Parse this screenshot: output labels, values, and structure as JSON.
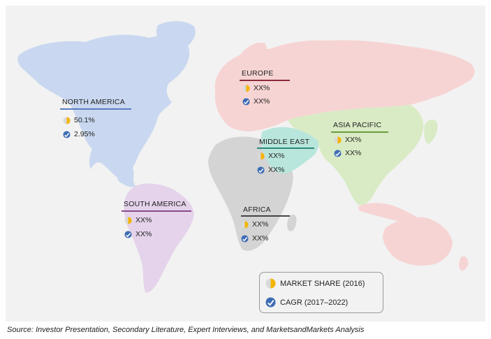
{
  "colors": {
    "background": "#f2f2f2",
    "north_america": "#c9d8f0",
    "south_america": "#e4d3ea",
    "europe": "#f7d4d4",
    "asia_pacific": "#d9ebc5",
    "middle_east": "#b9e6dc",
    "africa": "#d4d4d4",
    "oceania": "#f7d4d4",
    "market_share_icon": "#f4b400",
    "cagr_icon": "#3e6db5"
  },
  "regions": [
    {
      "id": "north-america",
      "label": "NORTH AMERICA",
      "market_share": "50.1%",
      "cagr": "2.95%",
      "rule_color": "#5b7cc0"
    },
    {
      "id": "europe",
      "label": "EUROPE",
      "market_share": "XX%",
      "cagr": "XX%",
      "rule_color": "#8b2a3a"
    },
    {
      "id": "asia-pacific",
      "label": "ASIA PACIFIC",
      "market_share": "XX%",
      "cagr": "XX%",
      "rule_color": "#6d9a3c"
    },
    {
      "id": "middle-east",
      "label": "MIDDLE EAST",
      "market_share": "XX%",
      "cagr": "XX%",
      "rule_color": "#2b8a7a"
    },
    {
      "id": "south-america",
      "label": "SOUTH AMERICA",
      "market_share": "XX%",
      "cagr": "XX%",
      "rule_color": "#8a4a8a"
    },
    {
      "id": "africa",
      "label": "AFRICA",
      "market_share": "XX%",
      "cagr": "XX%",
      "rule_color": "#444444"
    }
  ],
  "legend": {
    "market_share_label": "MARKET SHARE (2016)",
    "cagr_label": "CAGR (2017–2022)"
  },
  "source_text": "Source: Investor Presentation, Secondary Literature, Expert Interviews, and MarketsandMarkets Analysis"
}
